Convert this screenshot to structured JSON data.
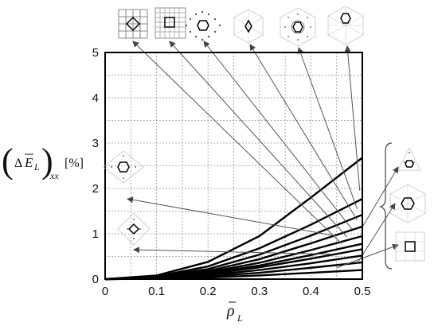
{
  "chart_data": {
    "type": "line",
    "title": "",
    "xlabel": "ρ̄L",
    "ylabel": "(ΔĒL)xx [%]",
    "xlim": [
      0,
      0.5
    ],
    "ylim": [
      0,
      5
    ],
    "xticks": [
      "0",
      "0.1",
      "0.2",
      "0.3",
      "0.4",
      "0.5"
    ],
    "yticks": [
      "0",
      "1",
      "2",
      "3",
      "4",
      "5"
    ],
    "grid": true,
    "legend": "none (lattice topology thumbnails with leader arrows)",
    "series": [
      {
        "x": [
          0,
          0.1,
          0.2,
          0.3,
          0.4,
          0.5
        ],
        "values": [
          0,
          0.08,
          0.38,
          0.95,
          1.8,
          2.68
        ]
      },
      {
        "x": [
          0,
          0.1,
          0.2,
          0.3,
          0.4,
          0.5
        ],
        "values": [
          0,
          0.06,
          0.28,
          0.68,
          1.2,
          1.77
        ]
      },
      {
        "x": [
          0,
          0.1,
          0.2,
          0.3,
          0.4,
          0.5
        ],
        "values": [
          0,
          0.05,
          0.22,
          0.54,
          0.96,
          1.42
        ]
      },
      {
        "x": [
          0,
          0.1,
          0.2,
          0.3,
          0.4,
          0.5
        ],
        "values": [
          0,
          0.04,
          0.18,
          0.44,
          0.79,
          1.16
        ]
      },
      {
        "x": [
          0,
          0.1,
          0.2,
          0.3,
          0.4,
          0.5
        ],
        "values": [
          0,
          0.035,
          0.15,
          0.36,
          0.64,
          0.95
        ]
      },
      {
        "x": [
          0,
          0.1,
          0.2,
          0.3,
          0.4,
          0.5
        ],
        "values": [
          0,
          0.03,
          0.13,
          0.3,
          0.53,
          0.78
        ]
      },
      {
        "x": [
          0,
          0.1,
          0.2,
          0.3,
          0.4,
          0.5
        ],
        "values": [
          0,
          0.025,
          0.11,
          0.26,
          0.45,
          0.66
        ]
      },
      {
        "x": [
          0,
          0.1,
          0.2,
          0.3,
          0.4,
          0.5
        ],
        "values": [
          0,
          0.02,
          0.085,
          0.2,
          0.35,
          0.52
        ]
      },
      {
        "x": [
          0,
          0.1,
          0.2,
          0.3,
          0.4,
          0.5
        ],
        "values": [
          0,
          0.015,
          0.06,
          0.14,
          0.25,
          0.37
        ]
      },
      {
        "x": [
          0,
          0.1,
          0.2,
          0.3,
          0.4,
          0.5
        ],
        "values": [
          0,
          0.01,
          0.035,
          0.08,
          0.14,
          0.2
        ]
      }
    ],
    "annotations": {
      "thumbnail_labels": [
        "square-lattice",
        "square-grid-lattice",
        "hexagonal-lattice",
        "kagome-lattice",
        "dense-hexagonal-lattice",
        "triangular-lattice",
        "side-hexagon-diamond-lattice",
        "side-diamond-lattice",
        "side-triangle-lattice",
        "side-hexagon-lattice",
        "side-square-lattice"
      ],
      "arrows": [
        {
          "from_thumbnail": 0,
          "to": [
            0.46,
            0.78
          ]
        },
        {
          "from_thumbnail": 1,
          "to": [
            0.47,
            0.93
          ]
        },
        {
          "from_thumbnail": 2,
          "to": [
            0.48,
            1.1
          ]
        },
        {
          "from_thumbnail": 3,
          "to": [
            0.49,
            1.3
          ]
        },
        {
          "from_thumbnail": 4,
          "to": [
            0.49,
            1.55
          ]
        },
        {
          "from_thumbnail": 5,
          "to": [
            0.495,
            1.95
          ]
        },
        {
          "from_thumbnail": 6,
          "to": [
            0.45,
            0.95
          ]
        },
        {
          "from_thumbnail": 7,
          "to": [
            0.44,
            0.55
          ]
        },
        {
          "from_thumbnail": 8,
          "to": [
            0.5,
            1.15
          ]
        },
        {
          "from_thumbnail": 9,
          "to": [
            0.49,
            0.35
          ]
        },
        {
          "from_thumbnail": 10,
          "to": [
            0.45,
            0.25
          ]
        }
      ]
    }
  }
}
